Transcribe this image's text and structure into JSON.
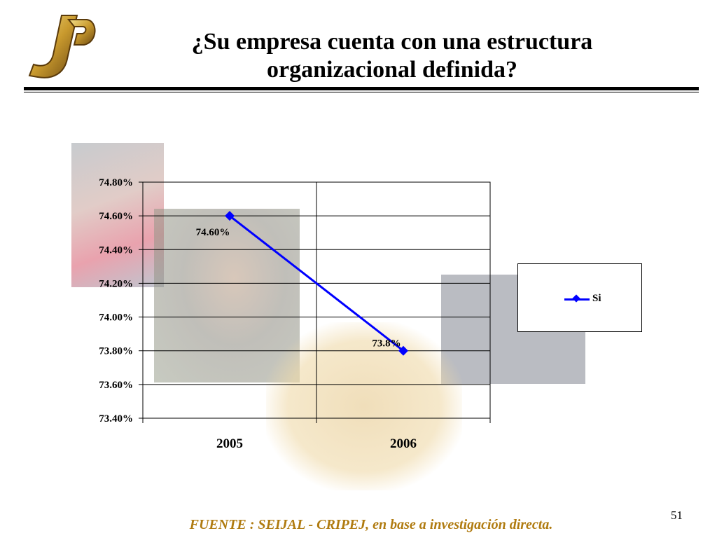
{
  "slide": {
    "title": "¿Su empresa cuenta con una estructura organizacional definida?",
    "source": "FUENTE :  SEIJAL - CRIPEJ,  en base a investigación directa.",
    "page_number": "51",
    "logo_text": "JP"
  },
  "colors": {
    "series": "#0000ff",
    "source_text": "#b07b10",
    "rule": "#000000"
  },
  "chart_data": {
    "type": "line",
    "categories": [
      "2005",
      "2006"
    ],
    "series": [
      {
        "name": "Si",
        "values": [
          74.6,
          73.8
        ],
        "data_labels": [
          "74.60%",
          "73.8%"
        ]
      }
    ],
    "ylim": [
      73.4,
      74.8
    ],
    "ytick_values": [
      73.4,
      73.6,
      73.8,
      74.0,
      74.2,
      74.4,
      74.6,
      74.8
    ],
    "ytick_labels": [
      "73.40%",
      "73.60%",
      "73.80%",
      "74.00%",
      "74.20%",
      "74.40%",
      "74.60%",
      "74.80%"
    ],
    "grid": true,
    "legend_position": "right",
    "marker": "diamond"
  }
}
